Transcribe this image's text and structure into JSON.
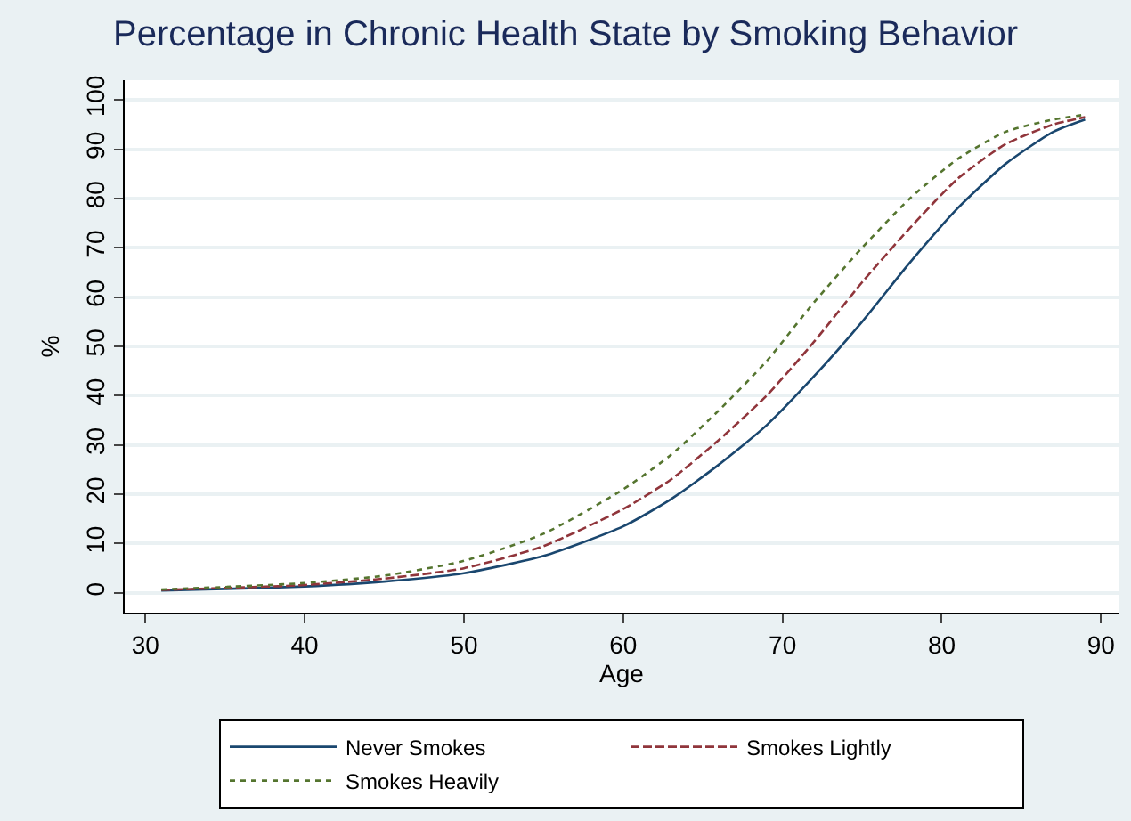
{
  "chart_data": {
    "type": "line",
    "title": "Percentage in Chronic Health State by Smoking Behavior",
    "xlabel": "Age",
    "ylabel": "%",
    "x": [
      31,
      35,
      40,
      45,
      50,
      55,
      60,
      63,
      66,
      69,
      72,
      75,
      78,
      81,
      84,
      87,
      89
    ],
    "series": [
      {
        "name": "Never Smokes",
        "color": "#1a476f",
        "line_style": "solid",
        "values": [
          0.5,
          0.8,
          1.3,
          2.3,
          4,
          7.5,
          13.5,
          19,
          26,
          34,
          44,
          55,
          67,
          78,
          87,
          93.5,
          96
        ]
      },
      {
        "name": "Smokes Lightly",
        "color": "#90353b",
        "line_style": "dashed",
        "values": [
          0.6,
          1,
          1.6,
          2.9,
          5,
          9.5,
          17,
          23,
          31,
          40,
          51,
          63,
          74,
          84,
          91,
          95,
          96.5
        ]
      },
      {
        "name": "Smokes Heavily",
        "color": "#55752f",
        "line_style": "dotted",
        "values": [
          0.7,
          1.2,
          2,
          3.5,
          6.5,
          12,
          21,
          28,
          37,
          47,
          59,
          70,
          80,
          88,
          93.5,
          96,
          97
        ]
      }
    ],
    "xlim": [
      28.7,
      91.1
    ],
    "ylim": [
      -4,
      104
    ],
    "xticks": [
      30,
      40,
      50,
      60,
      70,
      80,
      90
    ],
    "yticks": [
      0,
      10,
      20,
      30,
      40,
      50,
      60,
      70,
      80,
      90,
      100
    ],
    "grid": "y",
    "legend": "bottom",
    "marker": "none"
  }
}
